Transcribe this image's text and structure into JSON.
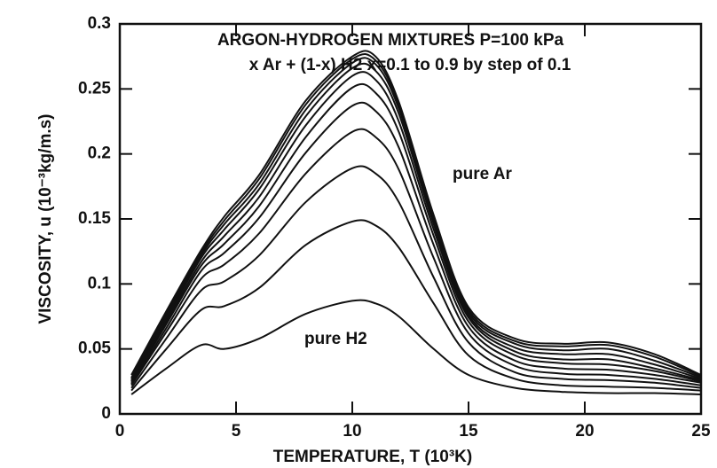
{
  "chart_data": {
    "type": "line",
    "title": [
      "ARGON-HYDROGEN  MIXTURES  P=100 kPa",
      "x Ar + (1-x) H2   x=0.1 to 0.9 by step of 0.1"
    ],
    "xlabel": "TEMPERATURE,   T (10³K)",
    "ylabel": "VISCOSITY,   u (10⁻³kg/m.s)",
    "annotations": [
      "pure Ar",
      "pure H2"
    ],
    "x": [
      0.5,
      2,
      3.5,
      4.5,
      6,
      8,
      10,
      11,
      12,
      13.5,
      15,
      17,
      19,
      21,
      23,
      25
    ],
    "series": [
      {
        "color": "#111111",
        "values": [
          0.015,
          0.035,
          0.053,
          0.05,
          0.058,
          0.077,
          0.087,
          0.085,
          0.075,
          0.05,
          0.03,
          0.02,
          0.017,
          0.016,
          0.016,
          0.015
        ]
      },
      {
        "color": "#111111",
        "values": [
          0.018,
          0.05,
          0.08,
          0.083,
          0.097,
          0.13,
          0.148,
          0.145,
          0.128,
          0.085,
          0.045,
          0.027,
          0.022,
          0.021,
          0.02,
          0.018
        ]
      },
      {
        "color": "#111111",
        "values": [
          0.02,
          0.058,
          0.095,
          0.102,
          0.122,
          0.163,
          0.189,
          0.185,
          0.163,
          0.105,
          0.055,
          0.032,
          0.027,
          0.026,
          0.024,
          0.02
        ]
      },
      {
        "color": "#111111",
        "values": [
          0.022,
          0.063,
          0.104,
          0.115,
          0.139,
          0.185,
          0.217,
          0.213,
          0.188,
          0.12,
          0.062,
          0.037,
          0.031,
          0.03,
          0.027,
          0.022
        ]
      },
      {
        "color": "#111111",
        "values": [
          0.023,
          0.066,
          0.11,
          0.124,
          0.151,
          0.201,
          0.237,
          0.233,
          0.205,
          0.13,
          0.067,
          0.041,
          0.035,
          0.034,
          0.03,
          0.024
        ]
      },
      {
        "color": "#111111",
        "values": [
          0.024,
          0.069,
          0.114,
          0.131,
          0.16,
          0.213,
          0.251,
          0.247,
          0.217,
          0.137,
          0.071,
          0.045,
          0.039,
          0.038,
          0.033,
          0.025
        ]
      },
      {
        "color": "#111111",
        "values": [
          0.025,
          0.071,
          0.117,
          0.137,
          0.167,
          0.222,
          0.26,
          0.257,
          0.225,
          0.142,
          0.074,
          0.048,
          0.042,
          0.042,
          0.035,
          0.026
        ]
      },
      {
        "color": "#111111",
        "values": [
          0.026,
          0.073,
          0.12,
          0.142,
          0.173,
          0.229,
          0.266,
          0.264,
          0.231,
          0.146,
          0.076,
          0.051,
          0.046,
          0.046,
          0.038,
          0.027
        ]
      },
      {
        "color": "#111111",
        "values": [
          0.027,
          0.075,
          0.122,
          0.146,
          0.177,
          0.234,
          0.27,
          0.269,
          0.235,
          0.149,
          0.078,
          0.054,
          0.049,
          0.05,
          0.041,
          0.028
        ]
      },
      {
        "color": "#111111",
        "values": [
          0.028,
          0.077,
          0.124,
          0.149,
          0.181,
          0.238,
          0.273,
          0.272,
          0.238,
          0.151,
          0.08,
          0.056,
          0.052,
          0.053,
          0.044,
          0.029
        ]
      },
      {
        "color": "#111111",
        "values": [
          0.03,
          0.079,
          0.126,
          0.152,
          0.184,
          0.241,
          0.275,
          0.275,
          0.24,
          0.153,
          0.082,
          0.058,
          0.054,
          0.055,
          0.046,
          0.03
        ]
      }
    ],
    "xlim": [
      0,
      25
    ],
    "xticks": [
      0,
      5,
      10,
      15,
      20,
      25
    ],
    "ylim": [
      0,
      0.3
    ],
    "yticks": [
      0,
      0.05,
      0.1,
      0.15,
      0.2,
      0.25,
      0.3
    ]
  }
}
